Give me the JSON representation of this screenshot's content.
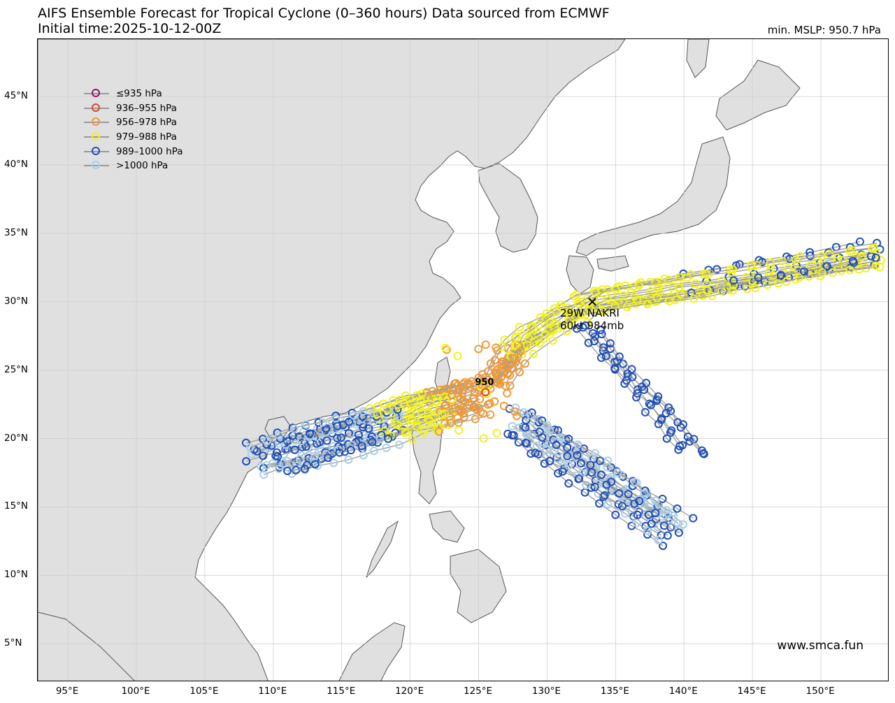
{
  "header": {
    "title_line1": "AIFS Ensemble Forecast for Tropical Cyclone (0–360 hours) Data sourced from ECMWF",
    "title_line2": "Initial time:2025-10-12-00Z",
    "min_mslp": "min. MSLP: 950.7 hPa"
  },
  "legend": [
    {
      "label": "≤935 hPa",
      "color": "#8B1A6B"
    },
    {
      "label": "936–955 hPa",
      "color": "#E0452B"
    },
    {
      "label": "956–978 hPa",
      "color": "#EE9A3A"
    },
    {
      "label": "979–988 hPa",
      "color": "#F2F21A"
    },
    {
      "label": "989–1000 hPa",
      "color": "#1F4FB8"
    },
    {
      "label": ">1000 hPa",
      "color": "#A9CEE8"
    }
  ],
  "axes": {
    "x_ticks": [
      "95°E",
      "100°E",
      "105°E",
      "110°E",
      "115°E",
      "120°E",
      "125°E",
      "130°E",
      "135°E",
      "140°E",
      "145°E",
      "150°E"
    ],
    "y_ticks": [
      "45°N",
      "40°N",
      "35°N",
      "30°N",
      "25°N",
      "20°N",
      "15°N",
      "10°N",
      "5°N"
    ],
    "lon_range": [
      92.8,
      155.0
    ],
    "lat_range": [
      2.2,
      49.2
    ]
  },
  "storm": {
    "name_line": "29W NAKRI",
    "info_line": "60kt 984mb",
    "lon": 133.3,
    "lat": 30.0,
    "marker": "cross-icon"
  },
  "center_value": {
    "text": "950",
    "lon": 125.5,
    "lat": 23.9
  },
  "watermark": "www.smca.fun",
  "colors": {
    "land": "#e0e0e0",
    "coast": "#555555",
    "grid": "#d0d0d0",
    "track": "#a0a0a0"
  }
}
